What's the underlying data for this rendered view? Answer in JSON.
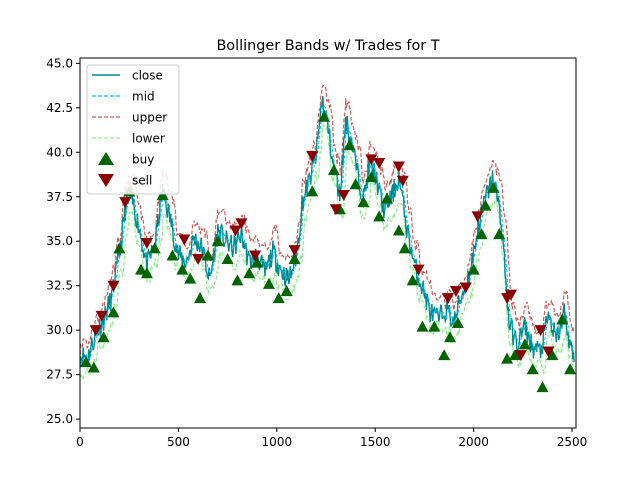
{
  "chart_data": {
    "type": "line",
    "title": "Bollinger Bands w/ Trades for T",
    "xlabel": "",
    "ylabel": "",
    "xlim": [
      0,
      2520
    ],
    "ylim": [
      24.5,
      45.3
    ],
    "x_ticks": [
      0,
      500,
      1000,
      1500,
      2000,
      2500
    ],
    "x_tick_labels": [
      "0",
      "500",
      "1000",
      "1500",
      "2000",
      "2500"
    ],
    "y_ticks": [
      25.0,
      27.5,
      30.0,
      32.5,
      35.0,
      37.5,
      40.0,
      42.5,
      45.0
    ],
    "y_tick_labels": [
      "25.0",
      "27.5",
      "30.0",
      "32.5",
      "35.0",
      "37.5",
      "40.0",
      "42.5",
      "45.0"
    ],
    "grid": false,
    "legend_position": "top-left",
    "colors": {
      "close": "#008b8b",
      "mid": "#00bfff",
      "upper": "#cd5c5c",
      "lower": "#90ee90",
      "buy": "#006400",
      "sell": "#8b0000"
    },
    "series": [
      {
        "name": "close",
        "style": "solid"
      },
      {
        "name": "mid",
        "style": "dashed"
      },
      {
        "name": "upper",
        "style": "dashed"
      },
      {
        "name": "lower",
        "style": "dashed"
      },
      {
        "name": "buy",
        "style": "marker-up"
      },
      {
        "name": "sell",
        "style": "marker-down"
      }
    ],
    "close_x": [
      0,
      40,
      80,
      120,
      160,
      200,
      230,
      260,
      300,
      340,
      380,
      420,
      460,
      500,
      540,
      580,
      620,
      660,
      700,
      740,
      780,
      820,
      860,
      900,
      940,
      980,
      1020,
      1060,
      1100,
      1130,
      1160,
      1200,
      1230,
      1260,
      1290,
      1320,
      1350,
      1380,
      1410,
      1440,
      1470,
      1500,
      1540,
      1580,
      1620,
      1660,
      1700,
      1740,
      1780,
      1820,
      1860,
      1900,
      1940,
      1980,
      2020,
      2060,
      2100,
      2140,
      2180,
      2220,
      2260,
      2300,
      2340,
      2380,
      2420,
      2460,
      2500,
      2510
    ],
    "close_y": [
      28.6,
      28.5,
      29.8,
      30.6,
      31.8,
      34.2,
      36.8,
      37.5,
      35.8,
      33.6,
      34.8,
      37.8,
      36.2,
      34.2,
      33.8,
      35.2,
      34.6,
      32.8,
      35.6,
      35.0,
      34.6,
      35.4,
      33.8,
      34.2,
      33.2,
      34.4,
      33.4,
      32.8,
      34.2,
      37.2,
      38.2,
      39.8,
      43.0,
      41.4,
      39.0,
      37.6,
      41.8,
      40.6,
      38.8,
      37.4,
      39.2,
      38.8,
      36.8,
      37.4,
      38.6,
      35.8,
      33.6,
      32.4,
      31.0,
      30.6,
      31.2,
      30.4,
      32.0,
      33.2,
      35.6,
      37.4,
      38.6,
      36.2,
      30.4,
      29.2,
      30.2,
      29.0,
      28.8,
      30.8,
      29.4,
      31.0,
      28.6,
      28.2
    ],
    "buy_x": [
      30,
      70,
      120,
      170,
      200,
      250,
      310,
      340,
      380,
      420,
      470,
      520,
      560,
      610,
      650,
      700,
      750,
      800,
      860,
      900,
      960,
      1010,
      1050,
      1090,
      1180,
      1240,
      1290,
      1320,
      1370,
      1400,
      1440,
      1480,
      1520,
      1560,
      1620,
      1650,
      1690,
      1740,
      1800,
      1850,
      1880,
      1920,
      2000,
      2040,
      2060,
      2100,
      2130,
      2170,
      2210,
      2260,
      2300,
      2350,
      2400,
      2450,
      2490
    ],
    "buy_y": [
      28.2,
      27.9,
      29.6,
      31.0,
      34.6,
      37.8,
      33.4,
      33.2,
      34.6,
      37.6,
      34.2,
      33.4,
      32.9,
      31.8,
      34.2,
      35.0,
      34.0,
      32.8,
      33.2,
      33.8,
      32.6,
      31.8,
      32.2,
      34.0,
      37.8,
      42.0,
      39.0,
      36.8,
      40.4,
      38.2,
      37.2,
      38.6,
      36.4,
      37.4,
      35.6,
      34.6,
      32.8,
      30.2,
      30.2,
      28.6,
      29.6,
      30.4,
      33.4,
      35.4,
      37.0,
      38.0,
      35.4,
      28.4,
      28.6,
      29.2,
      27.8,
      26.8,
      28.6,
      30.6,
      27.8
    ],
    "sell_x": [
      80,
      110,
      170,
      230,
      340,
      530,
      600,
      790,
      820,
      890,
      1090,
      1180,
      1300,
      1340,
      1480,
      1520,
      1620,
      1640,
      1720,
      1870,
      1910,
      1960,
      2020,
      2170,
      2190,
      2240,
      2340,
      2380
    ],
    "sell_y": [
      30.0,
      30.8,
      32.5,
      37.2,
      34.9,
      35.1,
      34.0,
      35.6,
      36.0,
      34.2,
      34.5,
      39.8,
      36.8,
      37.6,
      39.6,
      39.4,
      39.2,
      38.4,
      33.4,
      31.8,
      32.2,
      32.4,
      36.4,
      31.8,
      32.0,
      28.6,
      30.0,
      28.8
    ]
  }
}
